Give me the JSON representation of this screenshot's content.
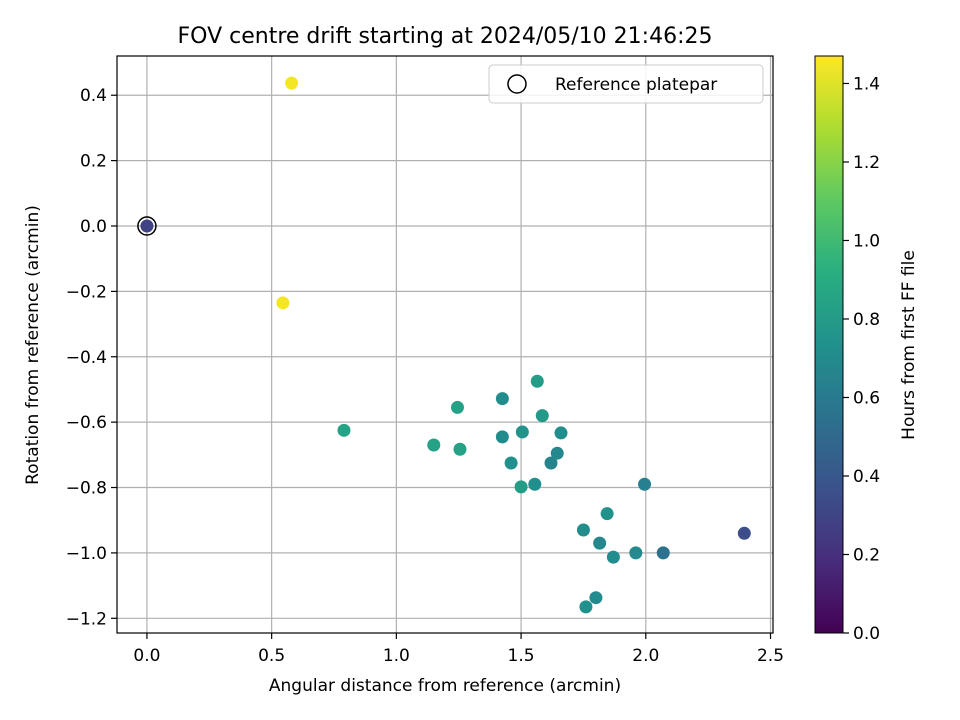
{
  "chart_data": {
    "type": "scatter",
    "title": "FOV centre drift starting at 2024/05/10 21:46:25",
    "xlabel": "Angular distance from reference (arcmin)",
    "ylabel": "Rotation from reference (arcmin)",
    "xlim": [
      -0.12,
      2.51
    ],
    "ylim": [
      -1.245,
      0.52
    ],
    "xticks": [
      0.0,
      0.5,
      1.0,
      1.5,
      2.0,
      2.5
    ],
    "xtick_labels": [
      "0.0",
      "0.5",
      "1.0",
      "1.5",
      "2.0",
      "2.5"
    ],
    "yticks": [
      0.4,
      0.2,
      0.0,
      -0.2,
      -0.4,
      -0.6,
      -0.8,
      -1.0,
      -1.2
    ],
    "ytick_labels": [
      "0.4",
      "0.2",
      "0.0",
      "−0.2",
      "−0.4",
      "−0.6",
      "−0.8",
      "−1.0",
      "−1.2"
    ],
    "grid": true,
    "legend": {
      "placement": "upper right",
      "label": "Reference platepar",
      "marker": "hollow circle"
    },
    "reference_point": {
      "x": 0.0,
      "y": 0.0
    },
    "colorbar": {
      "label": "Hours from first FF file",
      "colormap": "viridis",
      "range": [
        0.0,
        1.47
      ],
      "ticks": [
        0.0,
        0.2,
        0.4,
        0.6,
        0.8,
        1.0,
        1.2,
        1.4
      ],
      "tick_labels": [
        "0.0",
        "0.2",
        "0.4",
        "0.6",
        "0.8",
        "1.0",
        "1.2",
        "1.4"
      ]
    },
    "points": [
      {
        "x": 0.0,
        "y": 0.0,
        "c": 0.3
      },
      {
        "x": 0.58,
        "y": 0.437,
        "c": 1.45
      },
      {
        "x": 0.545,
        "y": -0.235,
        "c": 1.45
      },
      {
        "x": 0.79,
        "y": -0.625,
        "c": 0.86
      },
      {
        "x": 1.15,
        "y": -0.67,
        "c": 0.85
      },
      {
        "x": 1.245,
        "y": -0.555,
        "c": 0.84
      },
      {
        "x": 1.255,
        "y": -0.683,
        "c": 0.85
      },
      {
        "x": 1.425,
        "y": -0.528,
        "c": 0.72
      },
      {
        "x": 1.425,
        "y": -0.645,
        "c": 0.71
      },
      {
        "x": 1.46,
        "y": -0.725,
        "c": 0.74
      },
      {
        "x": 1.5,
        "y": -0.798,
        "c": 0.82
      },
      {
        "x": 1.505,
        "y": -0.63,
        "c": 0.76
      },
      {
        "x": 1.555,
        "y": -0.79,
        "c": 0.73
      },
      {
        "x": 1.565,
        "y": -0.475,
        "c": 0.81
      },
      {
        "x": 1.585,
        "y": -0.58,
        "c": 0.8
      },
      {
        "x": 1.62,
        "y": -0.725,
        "c": 0.67
      },
      {
        "x": 1.645,
        "y": -0.695,
        "c": 0.69
      },
      {
        "x": 1.66,
        "y": -0.633,
        "c": 0.72
      },
      {
        "x": 1.75,
        "y": -0.93,
        "c": 0.72
      },
      {
        "x": 1.76,
        "y": -1.165,
        "c": 0.74
      },
      {
        "x": 1.8,
        "y": -1.137,
        "c": 0.7
      },
      {
        "x": 1.815,
        "y": -0.97,
        "c": 0.69
      },
      {
        "x": 1.845,
        "y": -0.88,
        "c": 0.75
      },
      {
        "x": 1.87,
        "y": -1.013,
        "c": 0.72
      },
      {
        "x": 1.96,
        "y": -1.0,
        "c": 0.7
      },
      {
        "x": 1.995,
        "y": -0.79,
        "c": 0.64
      },
      {
        "x": 2.07,
        "y": -1.0,
        "c": 0.55
      },
      {
        "x": 2.395,
        "y": -0.94,
        "c": 0.35
      }
    ]
  }
}
